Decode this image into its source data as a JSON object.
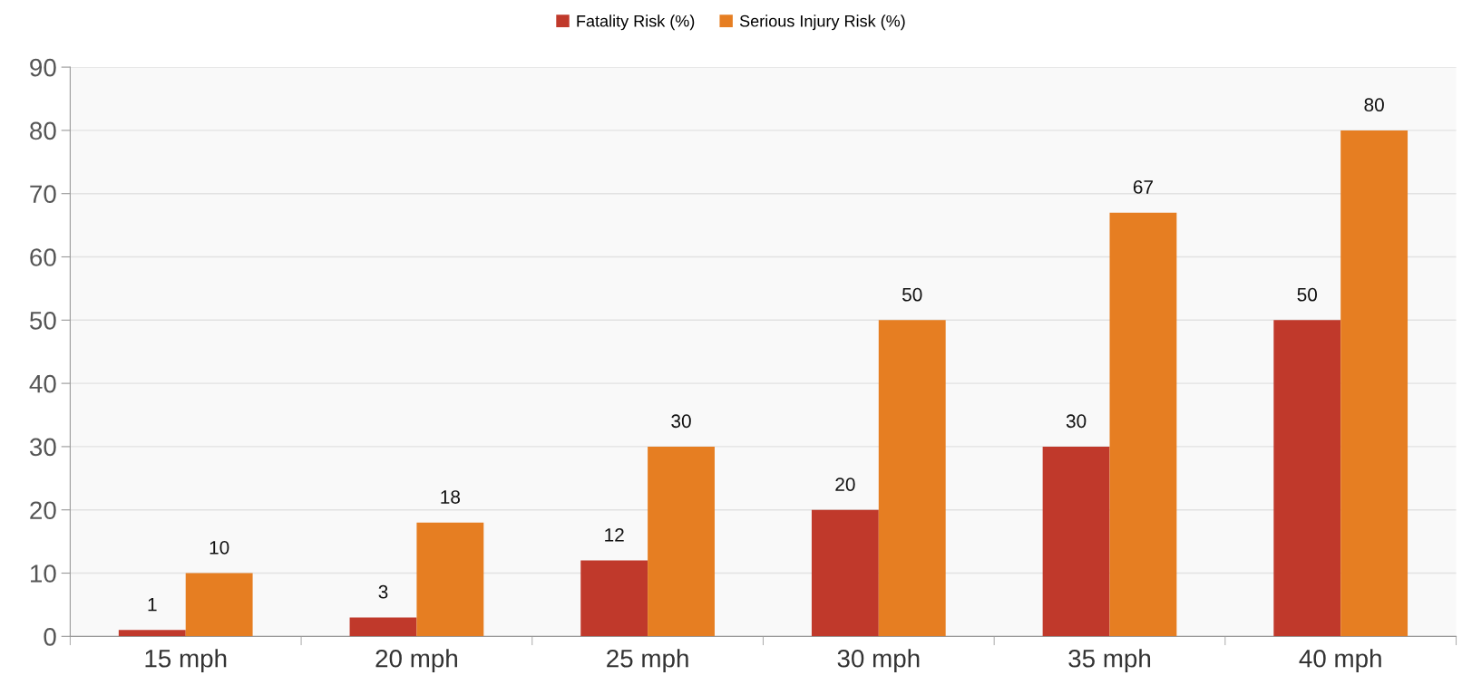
{
  "chart_data": {
    "type": "bar",
    "categories": [
      "15 mph",
      "20 mph",
      "25 mph",
      "30 mph",
      "35 mph",
      "40 mph"
    ],
    "series": [
      {
        "name": "Fatality Risk (%)",
        "color": "#c0392b",
        "values": [
          1,
          3,
          12,
          20,
          30,
          50
        ]
      },
      {
        "name": "Serious Injury Risk (%)",
        "color": "#e67e22",
        "values": [
          10,
          18,
          30,
          50,
          67,
          80
        ]
      }
    ],
    "ylim": [
      0,
      90
    ],
    "yticks": [
      0,
      10,
      20,
      30,
      40,
      50,
      60,
      70,
      80,
      90
    ],
    "grid": "y",
    "legend": "top",
    "data_labels": true
  }
}
